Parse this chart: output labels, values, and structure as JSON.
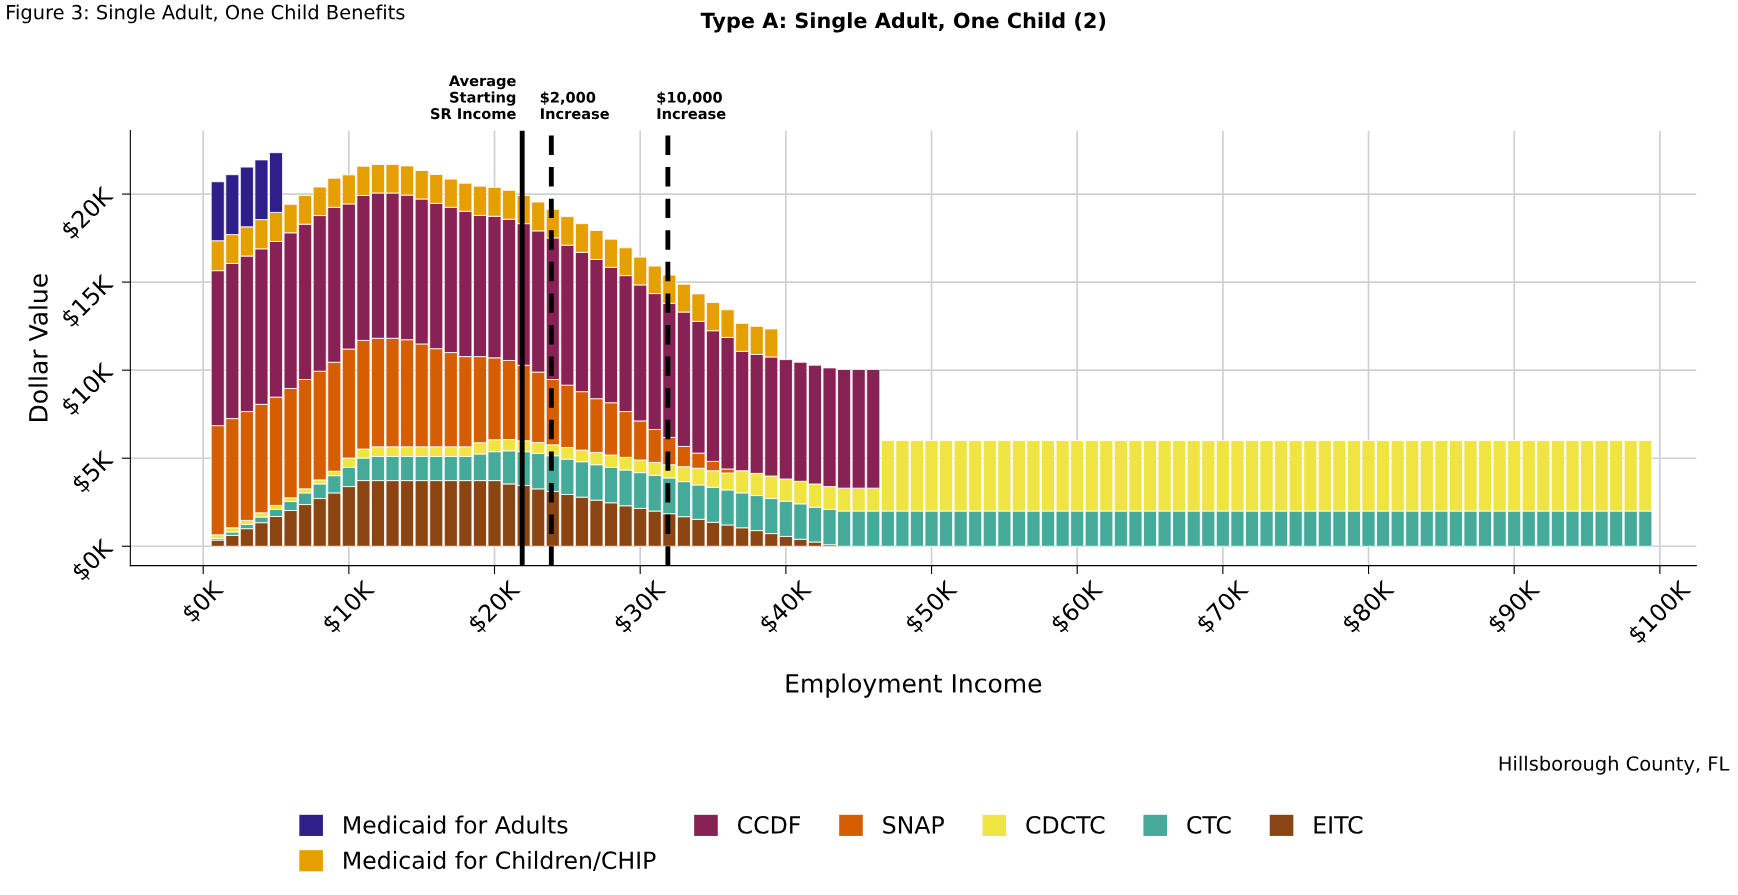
{
  "chart_data": {
    "type": "bar",
    "stacked": true,
    "title": "Type A: Single Adult, One Child (2)",
    "xlabel": "Employment Income",
    "ylabel": "Dollar Value",
    "annotations": [
      "Figure 3: Single Adult, One Child Benefits",
      "Hillsborough County, FL"
    ],
    "x": [
      1,
      2,
      3,
      4,
      5,
      6,
      7,
      8,
      9,
      10,
      11,
      12,
      13,
      14,
      15,
      16,
      17,
      18,
      19,
      20,
      21,
      22,
      23,
      24,
      25,
      26,
      27,
      28,
      29,
      30,
      31,
      32,
      33,
      34,
      35,
      36,
      37,
      38,
      39,
      40,
      41,
      42,
      43,
      44,
      45,
      46,
      47,
      48,
      49,
      50,
      51,
      52,
      53,
      54,
      55,
      56,
      57,
      58,
      59,
      60,
      61,
      62,
      63,
      64,
      65,
      66,
      67,
      68,
      69,
      70,
      71,
      72,
      73,
      74,
      75,
      76,
      77,
      78,
      79,
      80,
      81,
      82,
      83,
      84,
      85,
      86,
      87,
      88,
      89,
      90,
      91,
      92,
      93,
      94,
      95,
      96,
      97,
      98,
      99
    ],
    "xlim": [
      -5,
      102.5
    ],
    "ylim": [
      -1.1,
      23.6
    ],
    "xticks": [
      {
        "value": 0,
        "label": "$0K"
      },
      {
        "value": 10,
        "label": "$10K"
      },
      {
        "value": 20,
        "label": "$20K"
      },
      {
        "value": 30,
        "label": "$30K"
      },
      {
        "value": 40,
        "label": "$40K"
      },
      {
        "value": 50,
        "label": "$50K"
      },
      {
        "value": 60,
        "label": "$60K"
      },
      {
        "value": 70,
        "label": "$70K"
      },
      {
        "value": 80,
        "label": "$80K"
      },
      {
        "value": 90,
        "label": "$90K"
      },
      {
        "value": 100,
        "label": "$100K"
      }
    ],
    "yticks": [
      {
        "value": 0,
        "label": "$0K"
      },
      {
        "value": 5,
        "label": "$5K"
      },
      {
        "value": 10,
        "label": "$10K"
      },
      {
        "value": 15,
        "label": "$15K"
      },
      {
        "value": 20,
        "label": "$20K"
      }
    ],
    "grid": true,
    "legend": "bottom",
    "ref_lines": [
      {
        "axis": "x",
        "value": 21.9,
        "label": "Average\nStarting\nSR Income",
        "line_style": "solid",
        "color": "#000000"
      },
      {
        "axis": "x",
        "value": 23.9,
        "label": "$2,000\nIncrease",
        "line_style": "dashed",
        "color": "#000000"
      },
      {
        "axis": "x",
        "value": 31.9,
        "label": "$10,000\nIncrease",
        "line_style": "dashed",
        "color": "#000000"
      }
    ],
    "series": [
      {
        "name": "EITC",
        "color": "#8b4513",
        "values": [
          0.35,
          0.62,
          1.0,
          1.34,
          1.69,
          2.03,
          2.37,
          2.71,
          3.03,
          3.39,
          3.73,
          3.73,
          3.73,
          3.73,
          3.73,
          3.73,
          3.73,
          3.73,
          3.73,
          3.73,
          3.54,
          3.45,
          3.26,
          3.11,
          2.94,
          2.79,
          2.62,
          2.47,
          2.3,
          2.15,
          2.0,
          1.85,
          1.68,
          1.53,
          1.36,
          1.21,
          1.05,
          0.89,
          0.72,
          0.56,
          0.4,
          0.24,
          0.09,
          null,
          null,
          null,
          null,
          null,
          null,
          null,
          null,
          null,
          null,
          null,
          null,
          null,
          null,
          null,
          null,
          null,
          null,
          null,
          null,
          null,
          null,
          null,
          null,
          null,
          null,
          null,
          null,
          null,
          null,
          null,
          null,
          null,
          null,
          null,
          null,
          null,
          null,
          null,
          null,
          null,
          null,
          null,
          null,
          null,
          null,
          null,
          null,
          null,
          null,
          null,
          null,
          null,
          null,
          null,
          null
        ]
      },
      {
        "name": "CTC",
        "color": "#44aa99",
        "values": [
          0.1,
          0.19,
          0.24,
          0.32,
          0.4,
          0.51,
          0.66,
          0.83,
          0.98,
          1.09,
          1.28,
          1.37,
          1.37,
          1.37,
          1.37,
          1.37,
          1.37,
          1.37,
          1.51,
          1.64,
          1.88,
          1.92,
          2.01,
          2.03,
          2.01,
          2.01,
          2.01,
          2.01,
          2.03,
          2.03,
          2.03,
          2.03,
          1.99,
          1.95,
          1.99,
          1.99,
          1.98,
          1.99,
          1.99,
          2.0,
          2.01,
          1.98,
          2.0,
          2.0,
          2.0,
          2.0,
          2.0,
          2.0,
          2.0,
          2.0,
          2.0,
          2.0,
          2.0,
          2.0,
          2.0,
          2.0,
          2.0,
          2.0,
          2.0,
          2.0,
          2.0,
          2.0,
          2.0,
          2.0,
          2.0,
          2.0,
          2.0,
          2.0,
          2.0,
          2.0,
          2.0,
          2.0,
          2.0,
          2.0,
          2.0,
          2.0,
          2.0,
          2.0,
          2.0,
          2.0,
          2.0,
          2.0,
          2.0,
          2.0,
          2.0,
          2.0,
          2.0,
          2.0,
          2.0,
          2.0,
          2.0,
          2.0,
          2.0,
          2.0,
          2.0,
          2.0,
          2.0,
          2.0,
          2.0
        ]
      },
      {
        "name": "CDCTC",
        "color": "#f0e442",
        "values": [
          0.2,
          0.24,
          0.23,
          0.24,
          0.23,
          0.21,
          0.23,
          0.23,
          0.25,
          0.53,
          0.51,
          0.55,
          0.55,
          0.55,
          0.55,
          0.55,
          0.55,
          0.55,
          0.64,
          0.68,
          0.64,
          0.62,
          0.62,
          0.62,
          0.66,
          0.66,
          0.7,
          0.7,
          0.72,
          0.72,
          0.73,
          0.75,
          0.85,
          0.95,
          0.94,
          0.96,
          1.26,
          1.26,
          1.28,
          1.26,
          1.28,
          1.32,
          1.3,
          1.3,
          1.3,
          1.3,
          4.0,
          4.0,
          4.0,
          4.0,
          4.0,
          4.0,
          4.0,
          4.0,
          4.0,
          4.0,
          4.0,
          4.0,
          4.0,
          4.0,
          4.0,
          4.0,
          4.0,
          4.0,
          4.0,
          4.0,
          4.0,
          4.0,
          4.0,
          4.0,
          4.0,
          4.0,
          4.0,
          4.0,
          4.0,
          4.0,
          4.0,
          4.0,
          4.0,
          4.0,
          4.0,
          4.0,
          4.0,
          4.0,
          4.0,
          4.0,
          4.0,
          4.0,
          4.0,
          4.0,
          4.0,
          4.0,
          4.0,
          4.0,
          4.0,
          4.0,
          4.0,
          4.0,
          4.0
        ]
      },
      {
        "name": "SNAP",
        "color": "#d55e00",
        "values": [
          6.2,
          6.2,
          6.18,
          6.16,
          6.15,
          6.21,
          6.21,
          6.17,
          6.19,
          6.19,
          6.17,
          6.16,
          6.16,
          6.08,
          5.84,
          5.57,
          5.35,
          5.12,
          4.89,
          4.65,
          4.49,
          4.29,
          4.0,
          3.71,
          3.54,
          3.32,
          3.05,
          2.97,
          2.6,
          2.22,
          1.87,
          1.55,
          1.15,
          0.86,
          0.53,
          0.23,
          null,
          null,
          null,
          null,
          null,
          null,
          null,
          null,
          null,
          null,
          null,
          null,
          null,
          null,
          null,
          null,
          null,
          null,
          null,
          null,
          null,
          null,
          null,
          null,
          null,
          null,
          null,
          null,
          null,
          null,
          null,
          null,
          null,
          null,
          null,
          null,
          null,
          null,
          null,
          null,
          null,
          null,
          null,
          null,
          null,
          null,
          null,
          null,
          null,
          null,
          null,
          null,
          null,
          null,
          null,
          null,
          null,
          null,
          null,
          null,
          null,
          null,
          null
        ]
      },
      {
        "name": "CCDF",
        "color": "#882255",
        "values": [
          8.8,
          8.81,
          8.83,
          8.83,
          8.84,
          8.84,
          8.82,
          8.84,
          8.8,
          8.24,
          8.23,
          8.25,
          8.25,
          8.21,
          8.23,
          8.25,
          8.25,
          8.25,
          8.02,
          8.04,
          8.02,
          8.04,
          8.02,
          8.04,
          7.95,
          7.91,
          7.91,
          7.69,
          7.72,
          7.72,
          7.72,
          7.62,
          7.63,
          7.48,
          7.42,
          7.47,
          6.78,
          6.75,
          6.76,
          6.78,
          6.76,
          6.74,
          6.74,
          6.74,
          6.74,
          6.74,
          null,
          null,
          null,
          null,
          null,
          null,
          null,
          null,
          null,
          null,
          null,
          null,
          null,
          null,
          null,
          null,
          null,
          null,
          null,
          null,
          null,
          null,
          null,
          null,
          null,
          null,
          null,
          null,
          null,
          null,
          null,
          null,
          null,
          null,
          null,
          null,
          null,
          null,
          null,
          null,
          null,
          null,
          null,
          null,
          null,
          null,
          null,
          null,
          null,
          null,
          null,
          null,
          null
        ]
      },
      {
        "name": "Medicaid for Children/CHIP",
        "color": "#e69f00",
        "values": [
          1.7,
          1.64,
          1.66,
          1.66,
          1.65,
          1.62,
          1.63,
          1.62,
          1.65,
          1.65,
          1.66,
          1.62,
          1.62,
          1.66,
          1.62,
          1.64,
          1.6,
          1.6,
          1.66,
          1.64,
          1.64,
          1.6,
          1.64,
          1.62,
          1.62,
          1.63,
          1.64,
          1.6,
          1.58,
          1.58,
          1.56,
          1.6,
          1.58,
          1.56,
          1.6,
          1.57,
          1.59,
          1.6,
          1.59,
          null,
          null,
          null,
          null,
          null,
          null,
          null,
          null,
          null,
          null,
          null,
          null,
          null,
          null,
          null,
          null,
          null,
          null,
          null,
          null,
          null,
          null,
          null,
          null,
          null,
          null,
          null,
          null,
          null,
          null,
          null,
          null,
          null,
          null,
          null,
          null,
          null,
          null,
          null,
          null,
          null,
          null,
          null,
          null,
          null,
          null,
          null,
          null,
          null,
          null,
          null,
          null,
          null,
          null,
          null,
          null,
          null,
          null,
          null,
          null
        ]
      },
      {
        "name": "Medicaid for Adults",
        "color": "#2e1f8a",
        "values": [
          3.35,
          3.4,
          3.39,
          3.39,
          3.39,
          null,
          null,
          null,
          null,
          null,
          null,
          null,
          null,
          null,
          null,
          null,
          null,
          null,
          null,
          null,
          null,
          null,
          null,
          null,
          null,
          null,
          null,
          null,
          null,
          null,
          null,
          null,
          null,
          null,
          null,
          null,
          null,
          null,
          null,
          null,
          null,
          null,
          null,
          null,
          null,
          null,
          null,
          null,
          null,
          null,
          null,
          null,
          null,
          null,
          null,
          null,
          null,
          null,
          null,
          null,
          null,
          null,
          null,
          null,
          null,
          null,
          null,
          null,
          null,
          null,
          null,
          null,
          null,
          null,
          null,
          null,
          null,
          null,
          null,
          null,
          null,
          null,
          null,
          null,
          null,
          null,
          null,
          null,
          null,
          null,
          null,
          null,
          null,
          null,
          null,
          null,
          null,
          null,
          null
        ]
      }
    ]
  }
}
